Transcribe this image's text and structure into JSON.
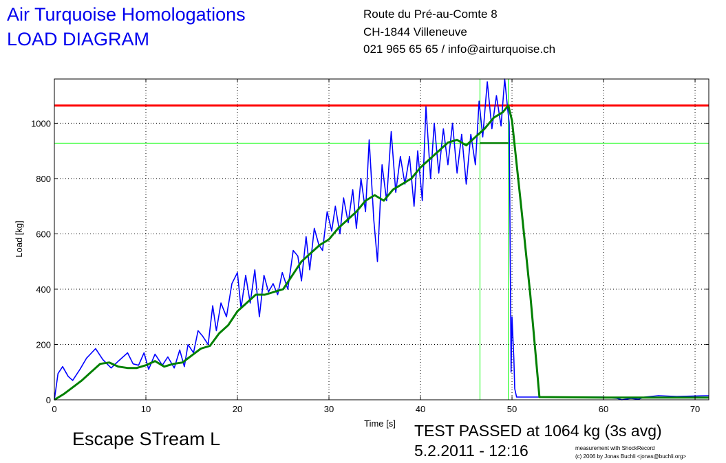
{
  "header": {
    "title_line1": "Air Turquoise Homologations",
    "title_line2": "LOAD DIAGRAM",
    "address_line1": "Route du Pré-au-Comte 8",
    "address_line2": "CH-1844 Villeneuve",
    "address_line3": "021 965 65 65 / info@airturquoise.ch"
  },
  "footer": {
    "model": "Escape STream L",
    "result": "TEST PASSED at 1064 kg (3s avg)",
    "datetime": "5.2.2011 - 12:16",
    "credit_line1": "measurement with ShockRecord",
    "credit_line2": "(c) 2006 by Jonas Buchli <jonas@buchli.org>"
  },
  "colors": {
    "raw": "#0000ff",
    "average": "#008000",
    "limit": "#ff0000",
    "marker": "#00ff00"
  },
  "chart_data": {
    "type": "line",
    "title": "",
    "xlabel": "Time [s]",
    "ylabel": "Load [kg]",
    "xlim": [
      0,
      71.5
    ],
    "ylim": [
      0,
      1160
    ],
    "xticks": [
      0,
      10,
      20,
      30,
      40,
      50,
      60,
      70
    ],
    "yticks": [
      0,
      200,
      400,
      600,
      800,
      1000
    ],
    "grid": true,
    "reference_lines": {
      "limit_load": 1064,
      "marker_load": 928,
      "marker_times": [
        46.5,
        49.6
      ]
    },
    "series": [
      {
        "name": "",
        "style": "raw",
        "x": [
          0,
          0.4,
          0.9,
          1.5,
          2,
          2.8,
          3.5,
          4.5,
          5.3,
          6.2,
          7,
          8,
          8.6,
          9.2,
          9.8,
          10.3,
          11,
          11.8,
          12.4,
          13.1,
          13.7,
          14.2,
          14.6,
          15.2,
          15.7,
          16.2,
          16.8,
          17.3,
          17.7,
          18.2,
          18.8,
          19.4,
          20,
          20.4,
          20.9,
          21.4,
          21.9,
          22.4,
          22.9,
          23.4,
          23.9,
          24.4,
          24.9,
          25.5,
          26.1,
          26.6,
          27,
          27.5,
          27.9,
          28.4,
          28.9,
          29.3,
          29.8,
          30.3,
          30.7,
          31.2,
          31.6,
          32.1,
          32.6,
          33,
          33.5,
          34,
          34.4,
          34.9,
          35.3,
          35.8,
          36.3,
          36.8,
          37.3,
          37.8,
          38.3,
          38.8,
          39.3,
          39.7,
          40.2,
          40.6,
          41.1,
          41.5,
          42,
          42.5,
          43,
          43.5,
          44,
          44.5,
          45,
          45.5,
          46,
          46.4,
          46.8,
          47.3,
          47.8,
          48.3,
          48.8,
          49.2,
          49.5,
          49.7,
          49.9,
          50.0,
          50.2,
          50.3,
          50.5,
          51,
          55,
          60,
          61.5,
          62,
          63,
          63.8,
          64.5,
          66,
          68,
          71.5
        ],
        "y": [
          0,
          95,
          120,
          85,
          70,
          110,
          150,
          185,
          145,
          115,
          140,
          170,
          130,
          125,
          170,
          110,
          165,
          125,
          155,
          115,
          180,
          120,
          200,
          170,
          250,
          230,
          200,
          340,
          250,
          350,
          300,
          420,
          460,
          330,
          450,
          350,
          470,
          300,
          450,
          390,
          420,
          380,
          460,
          400,
          540,
          520,
          430,
          590,
          470,
          620,
          560,
          540,
          680,
          610,
          700,
          600,
          730,
          640,
          760,
          620,
          800,
          680,
          940,
          650,
          500,
          850,
          720,
          970,
          750,
          880,
          780,
          880,
          700,
          900,
          720,
          1060,
          800,
          1000,
          820,
          980,
          850,
          1000,
          820,
          960,
          780,
          960,
          850,
          1080,
          950,
          1150,
          980,
          1100,
          990,
          1160,
          1060,
          1000,
          100,
          300,
          150,
          40,
          10,
          10,
          10,
          10,
          5,
          0,
          5,
          2,
          10,
          15,
          12,
          15
        ]
      },
      {
        "name": "",
        "style": "average",
        "x": [
          0,
          1,
          2,
          3,
          4,
          5,
          6,
          7,
          8,
          9,
          10,
          11,
          12,
          13,
          14,
          15,
          16,
          17,
          18,
          19,
          20,
          21,
          22,
          23,
          24,
          25,
          26,
          27,
          28,
          29,
          30,
          31,
          32,
          33,
          34,
          35,
          36,
          37,
          38,
          39,
          40,
          41,
          42,
          43,
          44,
          45,
          46,
          47,
          48,
          49,
          49.6,
          50,
          51,
          52,
          53,
          60,
          65,
          71.5
        ],
        "y": [
          0,
          20,
          45,
          70,
          100,
          130,
          135,
          120,
          115,
          115,
          125,
          140,
          120,
          130,
          135,
          160,
          185,
          195,
          240,
          270,
          320,
          350,
          380,
          380,
          390,
          400,
          450,
          500,
          530,
          560,
          580,
          620,
          650,
          680,
          720,
          740,
          720,
          760,
          780,
          800,
          840,
          870,
          900,
          930,
          940,
          920,
          950,
          980,
          1020,
          1040,
          1064,
          1010,
          700,
          380,
          10,
          8,
          8,
          8
        ]
      }
    ]
  }
}
